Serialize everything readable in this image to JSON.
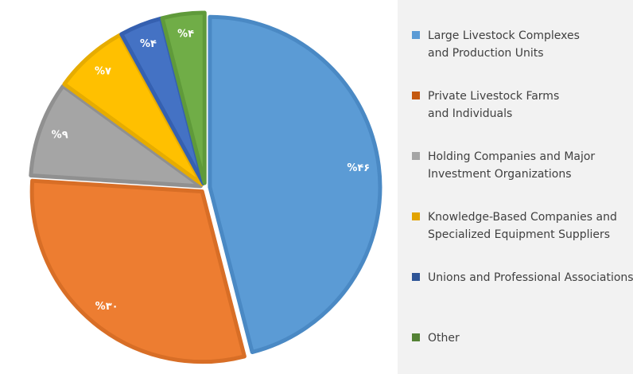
{
  "chart_data": {
    "type": "pie",
    "title": "",
    "slices": [
      {
        "label": "Large Livestock Complexes\nand Production Units",
        "value": 46,
        "data_label": "%۴۶",
        "color": "#5b9bd5",
        "stroke": "#4a89c4"
      },
      {
        "label": "Private Livestock Farms\nand Individuals",
        "value": 30,
        "data_label": "%۳۰",
        "color": "#ed7d31",
        "stroke": "#d86e26"
      },
      {
        "label": "Holding Companies and Major\nInvestment Organizations",
        "value": 9,
        "data_label": "%۹",
        "color": "#a5a5a5",
        "stroke": "#909090"
      },
      {
        "label": "Knowledge-Based Companies and\nSpecialized Equipment Suppliers",
        "value": 7,
        "data_label": "%۷",
        "color": "#ffc000",
        "stroke": "#e6ac00"
      },
      {
        "label": "Unions and Professional Associations",
        "value": 4,
        "data_label": "%۴",
        "color": "#4472c4",
        "stroke": "#3560b0"
      },
      {
        "label": "Other",
        "value": 4,
        "data_label": "%۴",
        "color": "#70ad47",
        "stroke": "#5f9a3a"
      }
    ],
    "legend_position": "right",
    "legend_swatch_colors": [
      "#5b9bd5",
      "#c55a11",
      "#a5a5a5",
      "#e2a300",
      "#2f5597",
      "#548235"
    ]
  }
}
